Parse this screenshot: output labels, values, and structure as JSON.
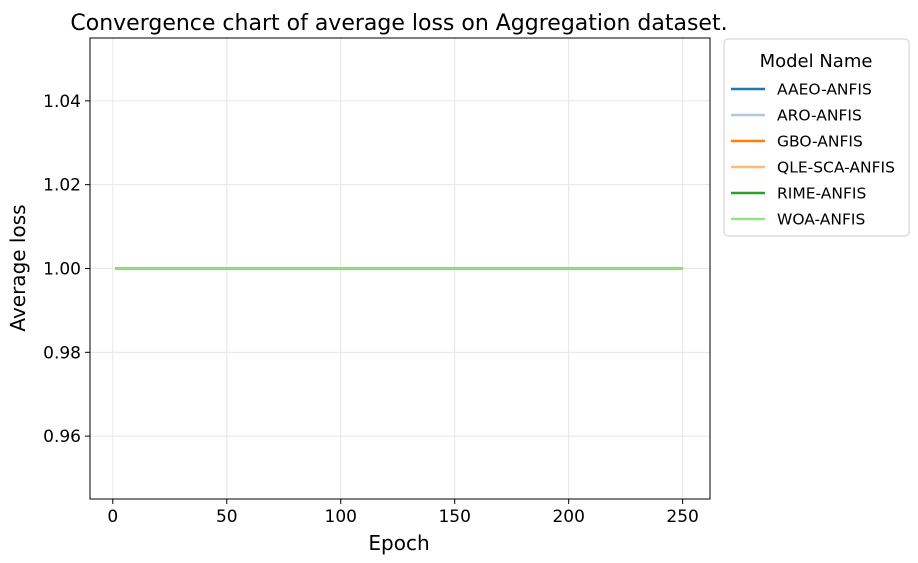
{
  "chart_data": {
    "type": "line",
    "title": "Convergence chart of average loss on Aggregation dataset.",
    "xlabel": "Epoch",
    "ylabel": "Average loss",
    "xlim": [
      -10,
      262
    ],
    "ylim": [
      0.945,
      1.055
    ],
    "xticks": [
      0,
      50,
      100,
      150,
      200,
      250
    ],
    "yticks": [
      0.96,
      0.98,
      1.0,
      1.02,
      1.04
    ],
    "xtick_labels": [
      "0",
      "50",
      "100",
      "150",
      "200",
      "250"
    ],
    "ytick_labels": [
      "0.96",
      "0.98",
      "1.00",
      "1.02",
      "1.04"
    ],
    "grid": true,
    "legend": {
      "title": "Model Name",
      "placement": "outside-right-top"
    },
    "x": [
      1,
      250
    ],
    "series": [
      {
        "name": "AAEO-ANFIS",
        "color": "#1f77b4",
        "values": [
          1.0,
          1.0
        ]
      },
      {
        "name": "ARO-ANFIS",
        "color": "#aec7e8",
        "values": [
          1.0,
          1.0
        ]
      },
      {
        "name": "GBO-ANFIS",
        "color": "#ff7f0e",
        "values": [
          1.0,
          1.0
        ]
      },
      {
        "name": "QLE-SCA-ANFIS",
        "color": "#ffbb78",
        "values": [
          1.0,
          1.0
        ]
      },
      {
        "name": "RIME-ANFIS",
        "color": "#2ca02c",
        "values": [
          1.0,
          1.0
        ]
      },
      {
        "name": "WOA-ANFIS",
        "color": "#98df8a",
        "values": [
          1.0,
          1.0
        ]
      }
    ]
  }
}
